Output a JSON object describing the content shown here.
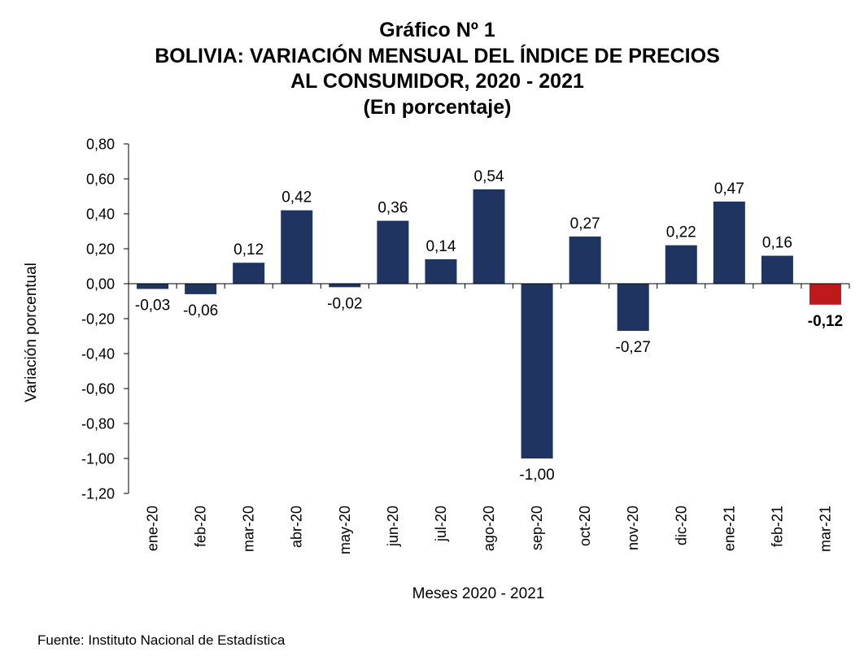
{
  "chart_data": {
    "type": "bar",
    "title_lines": [
      "Gráfico Nº 1",
      "BOLIVIA: VARIACIÓN MENSUAL DEL ÍNDICE DE PRECIOS",
      "AL CONSUMIDOR, 2020 - 2021",
      "(En porcentaje)"
    ],
    "xlabel": "Meses 2020 - 2021",
    "ylabel": "Variación porcentual",
    "categories": [
      "ene-20",
      "feb-20",
      "mar-20",
      "abr-20",
      "may-20",
      "jun-20",
      "jul-20",
      "ago-20",
      "sep-20",
      "oct-20",
      "nov-20",
      "dic-20",
      "ene-21",
      "feb-21",
      "mar-21"
    ],
    "values": [
      -0.03,
      -0.06,
      0.12,
      0.42,
      -0.02,
      0.36,
      0.14,
      0.54,
      -1.0,
      0.27,
      -0.27,
      0.22,
      0.47,
      0.16,
      -0.12
    ],
    "value_labels": [
      "-0,03",
      "-0,06",
      "0,12",
      "0,42",
      "-0,02",
      "0,36",
      "0,14",
      "0,54",
      "-1,00",
      "0,27",
      "-0,27",
      "0,22",
      "0,47",
      "0,16",
      "-0,12"
    ],
    "ylim": [
      -1.2,
      0.8
    ],
    "yticks": [
      0.8,
      0.6,
      0.4,
      0.2,
      0.0,
      -0.2,
      -0.4,
      -0.6,
      -0.8,
      -1.0,
      -1.2
    ],
    "ytick_labels": [
      "0,80",
      "0,60",
      "0,40",
      "0,20",
      "0,00",
      "-0,20",
      "-0,40",
      "-0,60",
      "-0,80",
      "-1,00",
      "-1,20"
    ],
    "colors": {
      "bar": "#1f3460",
      "highlight": "#c0191c",
      "axis": "#000000"
    },
    "highlight_index": 14,
    "grid": false,
    "legend": "none"
  },
  "source": "Fuente: Instituto Nacional de Estadística"
}
